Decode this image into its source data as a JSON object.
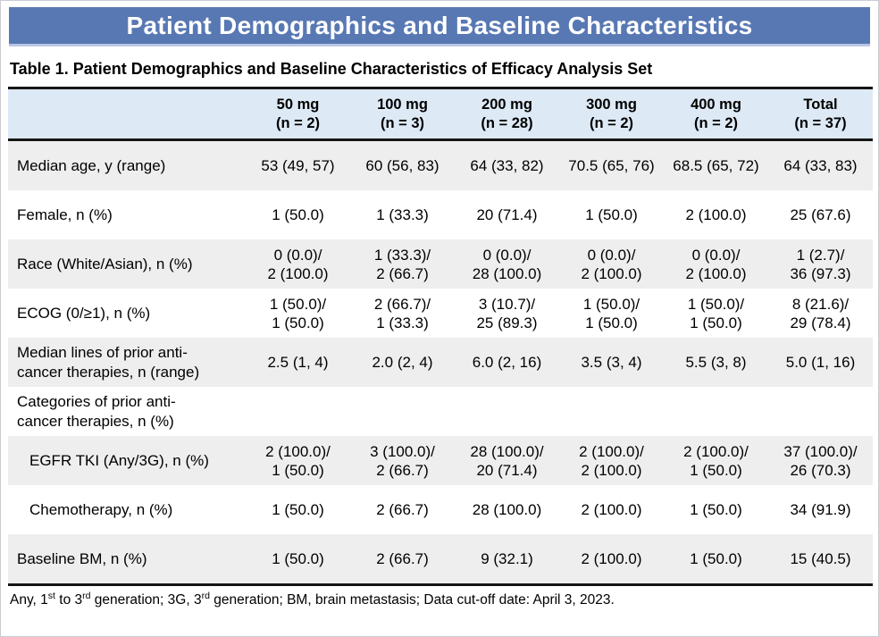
{
  "banner": {
    "title": "Patient Demographics and Baseline Characteristics"
  },
  "table_title": "Table 1. Patient Demographics and Baseline Characteristics of Efficacy Analysis Set",
  "colors": {
    "banner_blue": "#5878b4",
    "header_row_blue": "#dde9f5",
    "shaded_row_gray": "#eeeeee",
    "border_black": "#161616"
  },
  "table": {
    "columns": [
      {
        "label": "50 mg",
        "sub": "(n = 2)"
      },
      {
        "label": "100 mg",
        "sub": "(n = 3)"
      },
      {
        "label": "200 mg",
        "sub": "(n = 28)"
      },
      {
        "label": "300 mg",
        "sub": "(n = 2)"
      },
      {
        "label": "400 mg",
        "sub": "(n = 2)"
      },
      {
        "label": "Total",
        "sub": "(n = 37)"
      }
    ],
    "rows": [
      {
        "label": "Median age, y (range)",
        "values": [
          "53 (49, 57)",
          "60 (56, 83)",
          "64 (33, 82)",
          "70.5 (65, 76)",
          "68.5 (65, 72)",
          "64 (33, 83)"
        ]
      },
      {
        "label": "Female, n (%)",
        "values": [
          "1 (50.0)",
          "1 (33.3)",
          "20 (71.4)",
          "1 (50.0)",
          "2 (100.0)",
          "25 (67.6)"
        ]
      },
      {
        "label": "Race (White/Asian), n (%)",
        "values": [
          "0 (0.0)/\n2 (100.0)",
          "1 (33.3)/\n2 (66.7)",
          "0 (0.0)/\n28 (100.0)",
          "0 (0.0)/\n2 (100.0)",
          "0 (0.0)/\n2 (100.0)",
          "1 (2.7)/\n36 (97.3)"
        ]
      },
      {
        "label": "ECOG (0/≥1), n (%)",
        "values": [
          "1 (50.0)/\n1 (50.0)",
          "2 (66.7)/\n1 (33.3)",
          "3 (10.7)/\n25 (89.3)",
          "1 (50.0)/\n1 (50.0)",
          "1 (50.0)/\n1 (50.0)",
          "8 (21.6)/\n29 (78.4)"
        ]
      },
      {
        "label": "Median lines of prior anti-\ncancer therapies, n (range)",
        "values": [
          "2.5 (1, 4)",
          "2.0 (2, 4)",
          "6.0 (2, 16)",
          "3.5 (3, 4)",
          "5.5 (3, 8)",
          "5.0 (1, 16)"
        ]
      },
      {
        "label": "Categories of prior anti-\ncancer therapies, n (%)",
        "values": [
          "",
          "",
          "",
          "",
          "",
          ""
        ]
      },
      {
        "label": "EGFR TKI (Any/3G), n (%)",
        "values": [
          "2 (100.0)/\n1 (50.0)",
          "3 (100.0)/\n2 (66.7)",
          "28 (100.0)/\n20 (71.4)",
          "2 (100.0)/\n2 (100.0)",
          "2 (100.0)/\n1 (50.0)",
          "37 (100.0)/\n26 (70.3)"
        ]
      },
      {
        "label": "Chemotherapy, n (%)",
        "values": [
          "1 (50.0)",
          "2 (66.7)",
          "28 (100.0)",
          "2 (100.0)",
          "1 (50.0)",
          "34 (91.9)"
        ]
      },
      {
        "label": "Baseline BM, n (%)",
        "values": [
          "1 (50.0)",
          "2 (66.7)",
          "9 (32.1)",
          "2 (100.0)",
          "1 (50.0)",
          "15 (40.5)"
        ]
      }
    ]
  },
  "footnote": {
    "parts": [
      "Any, 1",
      "st",
      " to 3",
      "rd",
      " generation; 3G, 3",
      "rd",
      " generation; BM, brain metastasis; Data cut-off date: April 3, 2023."
    ]
  }
}
